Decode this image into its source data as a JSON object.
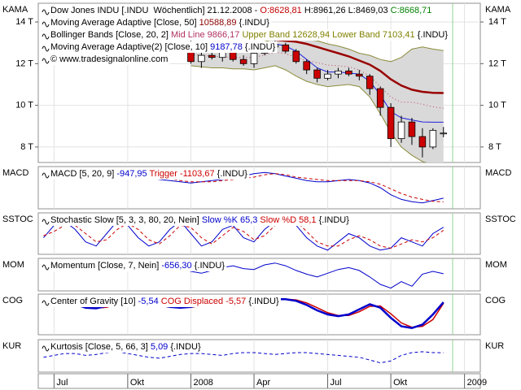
{
  "x_axis": {
    "categories": [
      null,
      "Jul",
      null,
      null,
      null,
      null,
      null,
      null,
      "Okt",
      null,
      null,
      null,
      null,
      null,
      "2008",
      null,
      null,
      null,
      null,
      null,
      "Apr",
      null,
      null,
      null,
      null,
      null,
      null,
      "Jul",
      null,
      null,
      null,
      null,
      null,
      "Okt",
      null,
      null,
      null,
      null,
      null,
      null,
      "2009",
      null
    ]
  },
  "chart_data": [
    {
      "type": "candlestick",
      "label": "KAMA",
      "legend": [
        [
          {
            "text": "Dow Jones INDU [.INDU  Wöchentlich] 21.12.2008 - ",
            "color": "#000000"
          },
          {
            "text": "O:8628,81",
            "color": "#c00000"
          },
          {
            "text": " H:8961,26 L:8469,03 ",
            "color": "#000000"
          },
          {
            "text": "C:8668,71",
            "color": "#008000"
          }
        ],
        [
          {
            "text": "Moving Average Adaptive [Close, 50] ",
            "color": "#000000"
          },
          {
            "text": "10588,89",
            "color": "#8b0000"
          },
          {
            "text": " {.INDU}",
            "color": "#000000"
          }
        ],
        [
          {
            "text": "Bollinger Bands [Close, 20, 2] ",
            "color": "#000000"
          },
          {
            "text": "Mid Line 9866,17",
            "color": "#b03060"
          },
          {
            "text": " Upper Band 12628,94 Lower Band 7103,41",
            "color": "#808000"
          },
          {
            "text": " {.INDU}",
            "color": "#000000"
          }
        ],
        [
          {
            "text": "Moving Average Adaptive(2) [Close, 10] ",
            "color": "#000000"
          },
          {
            "text": "9187,78",
            "color": "#0000cc"
          },
          {
            "text": " {.INDU}",
            "color": "#000000"
          }
        ],
        [
          {
            "text": "© www.tradesignalonline.com",
            "color": "#000000"
          }
        ]
      ],
      "ylim": [
        7255,
        14900
      ],
      "yticks": [
        {
          "value": 8000,
          "label": "8 T"
        },
        {
          "value": 10000,
          "label": "10 T"
        },
        {
          "value": 12000,
          "label": "12 T"
        },
        {
          "value": 14000,
          "label": "14 T"
        }
      ],
      "up_color": "#ffffff",
      "down_color": "#cc0000",
      "open": [
        null,
        null,
        null,
        null,
        null,
        null,
        null,
        null,
        null,
        null,
        null,
        null,
        null,
        null,
        12800,
        12100,
        12400,
        12300,
        12600,
        12200,
        12000,
        12500,
        12800,
        12900,
        12600,
        12100,
        11700,
        11300,
        11500,
        11650,
        11500,
        11400,
        10800,
        9900,
        8400,
        9200,
        8500,
        8000,
        8628.81,
        null,
        null,
        null
      ],
      "high": [
        null,
        null,
        null,
        null,
        null,
        null,
        null,
        null,
        null,
        null,
        null,
        null,
        null,
        null,
        13100,
        12700,
        12800,
        12700,
        12700,
        12400,
        12600,
        12900,
        13100,
        13000,
        12700,
        12200,
        11800,
        11700,
        11800,
        11800,
        11700,
        11500,
        10900,
        10100,
        9500,
        9400,
        8900,
        8900,
        8961.26,
        null,
        null,
        null
      ],
      "low": [
        null,
        null,
        null,
        null,
        null,
        null,
        null,
        null,
        null,
        null,
        null,
        null,
        null,
        null,
        12000,
        11800,
        12200,
        12100,
        12100,
        11900,
        11800,
        12400,
        12700,
        12500,
        12000,
        11500,
        11100,
        11200,
        11300,
        11400,
        11200,
        10500,
        9500,
        8000,
        8200,
        8100,
        7500,
        7900,
        8469.03,
        null,
        null,
        null
      ],
      "close": [
        null,
        null,
        null,
        null,
        null,
        null,
        null,
        null,
        null,
        null,
        null,
        null,
        null,
        null,
        12100,
        12400,
        12300,
        12600,
        12200,
        12000,
        12500,
        12800,
        12900,
        12600,
        12100,
        11700,
        11300,
        11500,
        11650,
        11500,
        11400,
        10800,
        9900,
        8400,
        9200,
        8500,
        8000,
        8800,
        8668.71,
        null,
        null,
        null
      ],
      "bands": {
        "fill": "#d9d9d9",
        "color": "#8c8c3c",
        "mid_color": "#c04060",
        "upper": [
          null,
          null,
          null,
          null,
          null,
          null,
          null,
          null,
          null,
          null,
          null,
          null,
          null,
          null,
          13000,
          12950,
          12900,
          12850,
          12850,
          12850,
          12900,
          13050,
          13200,
          13250,
          13200,
          13150,
          13100,
          12950,
          12850,
          12700,
          12500,
          12400,
          12200,
          12100,
          12300,
          12700,
          12800,
          12700,
          12628.94,
          null,
          null,
          null
        ],
        "lower": [
          null,
          null,
          null,
          null,
          null,
          null,
          null,
          null,
          null,
          null,
          null,
          null,
          null,
          null,
          11900,
          11850,
          11800,
          11800,
          11750,
          11750,
          11700,
          11800,
          11900,
          11700,
          11400,
          11150,
          11000,
          10900,
          10950,
          11000,
          10900,
          10400,
          9600,
          8700,
          8000,
          7600,
          7300,
          7150,
          7103.41,
          null,
          null,
          null
        ],
        "mid": [
          null,
          null,
          null,
          null,
          null,
          null,
          null,
          null,
          null,
          null,
          null,
          null,
          null,
          null,
          12450,
          12400,
          12350,
          12330,
          12300,
          12300,
          12300,
          12420,
          12550,
          12480,
          12300,
          12150,
          12050,
          11930,
          11900,
          11850,
          11700,
          11400,
          10900,
          10400,
          10150,
          10150,
          10050,
          9930,
          9866.17,
          null,
          null,
          null
        ]
      },
      "series": [
        {
          "color": "#990000",
          "width": 2.5,
          "values": [
            null,
            null,
            null,
            null,
            null,
            null,
            null,
            null,
            null,
            null,
            null,
            null,
            null,
            null,
            null,
            null,
            null,
            null,
            null,
            null,
            null,
            null,
            13150,
            13100,
            13050,
            12950,
            12800,
            12650,
            12500,
            12350,
            12150,
            11950,
            11650,
            11250,
            10950,
            10750,
            10650,
            10600,
            10588.89,
            null,
            null,
            null
          ]
        },
        {
          "color": "#2020e0",
          "width": 1,
          "values": [
            null,
            null,
            null,
            null,
            null,
            null,
            null,
            null,
            null,
            null,
            null,
            null,
            null,
            null,
            null,
            null,
            null,
            null,
            null,
            null,
            null,
            null,
            12950,
            12850,
            12600,
            12200,
            11800,
            11600,
            11600,
            11550,
            11500,
            11150,
            10500,
            9700,
            9400,
            9300,
            9200,
            9190,
            9187.78,
            null,
            null,
            null
          ]
        }
      ]
    },
    {
      "type": "line",
      "label": "MACD",
      "legend": [
        [
          {
            "text": "MACD [5, 20, 9] ",
            "color": "#000000"
          },
          {
            "text": "-947,95",
            "color": "#0000cc"
          },
          {
            "text": " Trigger -1103,67",
            "color": "#cc0000"
          },
          {
            "text": " {.INDU}",
            "color": "#000000"
          }
        ]
      ],
      "ylim": [
        -1400,
        400
      ],
      "series": [
        {
          "color": "#0000cc",
          "width": 1,
          "values": [
            100,
            150,
            50,
            -50,
            -100,
            0,
            100,
            150,
            100,
            50,
            -50,
            -150,
            -200,
            -250,
            -300,
            -250,
            -200,
            -150,
            -100,
            0,
            100,
            150,
            100,
            0,
            -100,
            -200,
            -250,
            -250,
            -200,
            -150,
            -200,
            -300,
            -500,
            -800,
            -1000,
            -1100,
            -1150,
            -1050,
            -947.95,
            null,
            null,
            null
          ]
        },
        {
          "color": "#cc0000",
          "width": 1,
          "dash": "4 3",
          "values": [
            50,
            100,
            100,
            50,
            0,
            -50,
            0,
            50,
            100,
            100,
            50,
            -50,
            -100,
            -200,
            -250,
            -250,
            -250,
            -200,
            -150,
            -100,
            -50,
            50,
            100,
            50,
            -50,
            -100,
            -150,
            -200,
            -200,
            -200,
            -200,
            -250,
            -350,
            -550,
            -750,
            -900,
            -1000,
            -1080,
            -1103.67,
            null,
            null,
            null
          ]
        }
      ]
    },
    {
      "type": "line",
      "label": "SSTOC",
      "legend": [
        [
          {
            "text": "Stochastic Slow [5, 3, 3, 80, 20, Nein] ",
            "color": "#000000"
          },
          {
            "text": "Slow %K 65,3",
            "color": "#0000cc"
          },
          {
            "text": " Slow %D 58,1",
            "color": "#cc0000"
          },
          {
            "text": " {.INDU}",
            "color": "#000000"
          }
        ]
      ],
      "ylim": [
        0,
        100
      ],
      "series": [
        {
          "color": "#0000cc",
          "width": 1,
          "values": [
            40,
            70,
            80,
            60,
            30,
            20,
            50,
            80,
            70,
            40,
            20,
            30,
            60,
            80,
            50,
            20,
            30,
            60,
            70,
            40,
            30,
            60,
            80,
            90,
            70,
            40,
            20,
            10,
            30,
            50,
            40,
            20,
            10,
            15,
            40,
            30,
            20,
            50,
            65.3,
            null,
            null,
            null
          ]
        },
        {
          "color": "#cc0000",
          "width": 1,
          "dash": "4 3",
          "values": [
            45,
            55,
            70,
            70,
            50,
            30,
            35,
            60,
            75,
            60,
            35,
            25,
            45,
            70,
            65,
            40,
            25,
            45,
            65,
            55,
            35,
            45,
            70,
            85,
            80,
            55,
            30,
            20,
            20,
            35,
            45,
            35,
            20,
            15,
            25,
            35,
            30,
            40,
            58.1,
            null,
            null,
            null
          ]
        }
      ]
    },
    {
      "type": "line",
      "label": "MOM",
      "legend": [
        [
          {
            "text": "Momentum [Close, 7, Nein] ",
            "color": "#000000"
          },
          {
            "text": "-656,30",
            "color": "#0000cc"
          },
          {
            "text": " {.INDU}",
            "color": "#000000"
          }
        ]
      ],
      "ylim": [
        -2500,
        1000
      ],
      "series": [
        {
          "color": "#0000cc",
          "width": 1,
          "values": [
            200,
            400,
            100,
            -200,
            -300,
            0,
            300,
            400,
            200,
            -100,
            -300,
            -200,
            100,
            -100,
            -400,
            -600,
            -300,
            0,
            200,
            -100,
            -200,
            300,
            500,
            200,
            -300,
            -700,
            -1000,
            -600,
            -200,
            0,
            -300,
            -1000,
            -1800,
            -2200,
            -1500,
            -2000,
            -700,
            -400,
            -656.3,
            null,
            null,
            null
          ]
        }
      ]
    },
    {
      "type": "line",
      "label": "COG",
      "legend": [
        [
          {
            "text": "Center of Gravity [10] ",
            "color": "#000000"
          },
          {
            "text": "-5,54",
            "color": "#0000cc"
          },
          {
            "text": " COG Displaced -5,57",
            "color": "#cc0000"
          },
          {
            "text": " {.INDU}",
            "color": "#000000"
          }
        ]
      ],
      "ylim": [
        -6.5,
        -5.3
      ],
      "series": [
        {
          "color": "#cc0000",
          "width": 1.5,
          "values": [
            -5.4,
            -5.42,
            -5.47,
            -5.55,
            -5.65,
            -5.71,
            -5.69,
            -5.6,
            -5.52,
            -5.5,
            -5.52,
            -5.58,
            -5.65,
            -5.69,
            -5.69,
            -5.64,
            -5.56,
            -5.5,
            -5.49,
            -5.52,
            -5.55,
            -5.53,
            -5.48,
            -5.45,
            -5.47,
            -5.56,
            -5.7,
            -5.85,
            -5.93,
            -5.93,
            -5.82,
            -5.66,
            -5.65,
            -5.88,
            -6.15,
            -6.28,
            -6.25,
            -6.05,
            -5.57,
            null,
            null,
            null
          ]
        },
        {
          "color": "#0000cc",
          "width": 2.5,
          "values": [
            -5.42,
            -5.45,
            -5.5,
            -5.6,
            -5.7,
            -5.72,
            -5.65,
            -5.55,
            -5.5,
            -5.5,
            -5.55,
            -5.62,
            -5.68,
            -5.7,
            -5.68,
            -5.6,
            -5.52,
            -5.48,
            -5.5,
            -5.55,
            -5.55,
            -5.5,
            -5.45,
            -5.45,
            -5.5,
            -5.62,
            -5.78,
            -5.9,
            -5.95,
            -5.9,
            -5.75,
            -5.6,
            -5.7,
            -6.0,
            -6.25,
            -6.3,
            -6.2,
            -5.9,
            -5.54,
            null,
            null,
            null
          ]
        }
      ]
    },
    {
      "type": "line",
      "label": "KUR",
      "legend": [
        [
          {
            "text": "Kurtosis [Close, 5, 66, 3] ",
            "color": "#000000"
          },
          {
            "text": "5,09",
            "color": "#0000cc"
          },
          {
            "text": " {.INDU}",
            "color": "#000000"
          }
        ]
      ],
      "ylim": [
        3,
        6.5
      ],
      "series": [
        {
          "color": "#0000cc",
          "width": 1,
          "dash": "4 3",
          "values": [
            4.6,
            4.8,
            5.0,
            5.0,
            4.8,
            4.9,
            5.1,
            5.2,
            5.0,
            4.8,
            4.6,
            4.5,
            4.7,
            4.9,
            5.0,
            5.0,
            4.9,
            4.8,
            5.0,
            5.1,
            5.1,
            5.0,
            4.9,
            5.0,
            5.1,
            5.1,
            5.0,
            4.9,
            4.8,
            4.7,
            4.6,
            4.3,
            4.0,
            4.2,
            4.8,
            5.1,
            5.2,
            5.1,
            5.09,
            null,
            null,
            null
          ]
        }
      ]
    }
  ]
}
